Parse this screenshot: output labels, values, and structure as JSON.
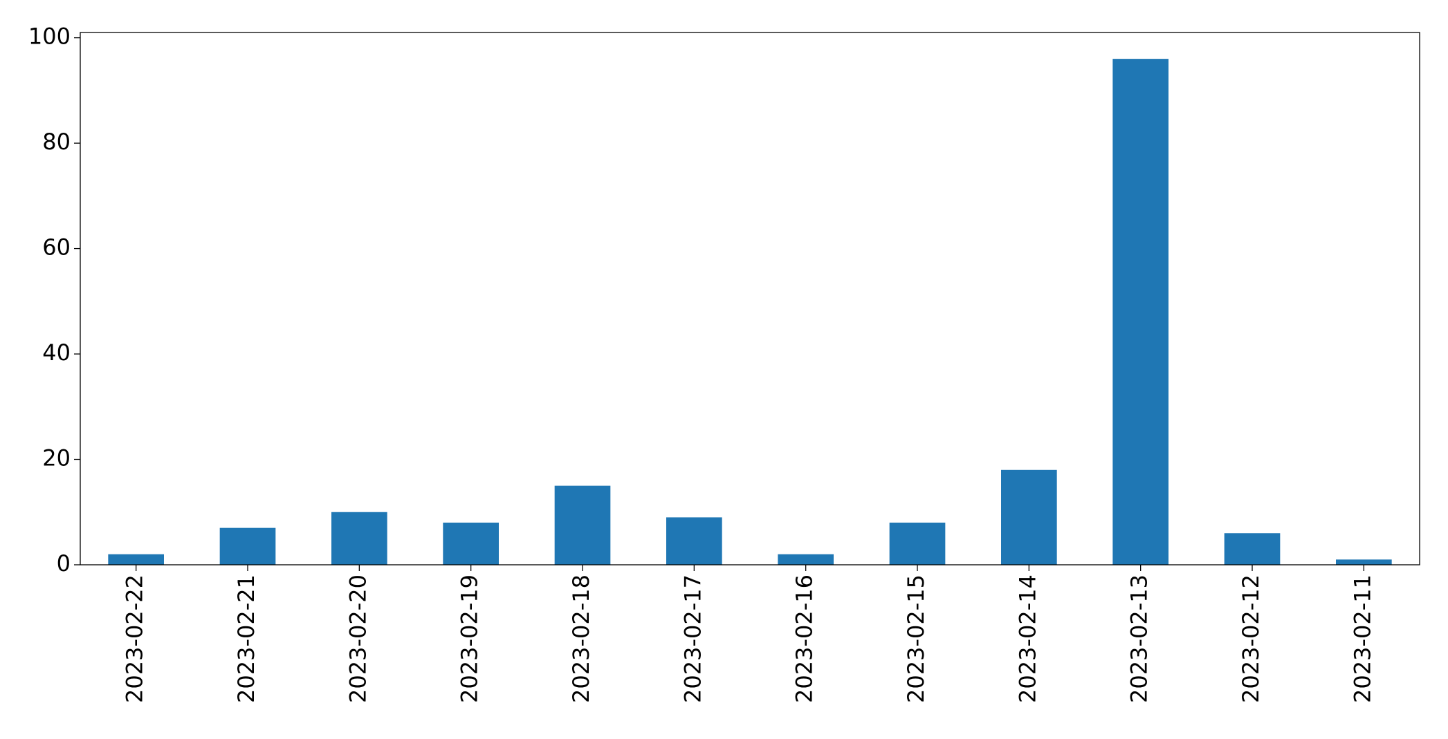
{
  "chart_data": {
    "type": "bar",
    "categories": [
      "2023-02-22",
      "2023-02-21",
      "2023-02-20",
      "2023-02-19",
      "2023-02-18",
      "2023-02-17",
      "2023-02-16",
      "2023-02-15",
      "2023-02-14",
      "2023-02-13",
      "2023-02-12",
      "2023-02-11"
    ],
    "values": [
      2,
      7,
      10,
      8,
      15,
      9,
      2,
      8,
      18,
      96,
      6,
      1
    ],
    "color": "#1f77b4",
    "ylim": [
      0,
      101
    ],
    "yticks": [
      0,
      20,
      40,
      60,
      80,
      100
    ],
    "grid": false
  }
}
